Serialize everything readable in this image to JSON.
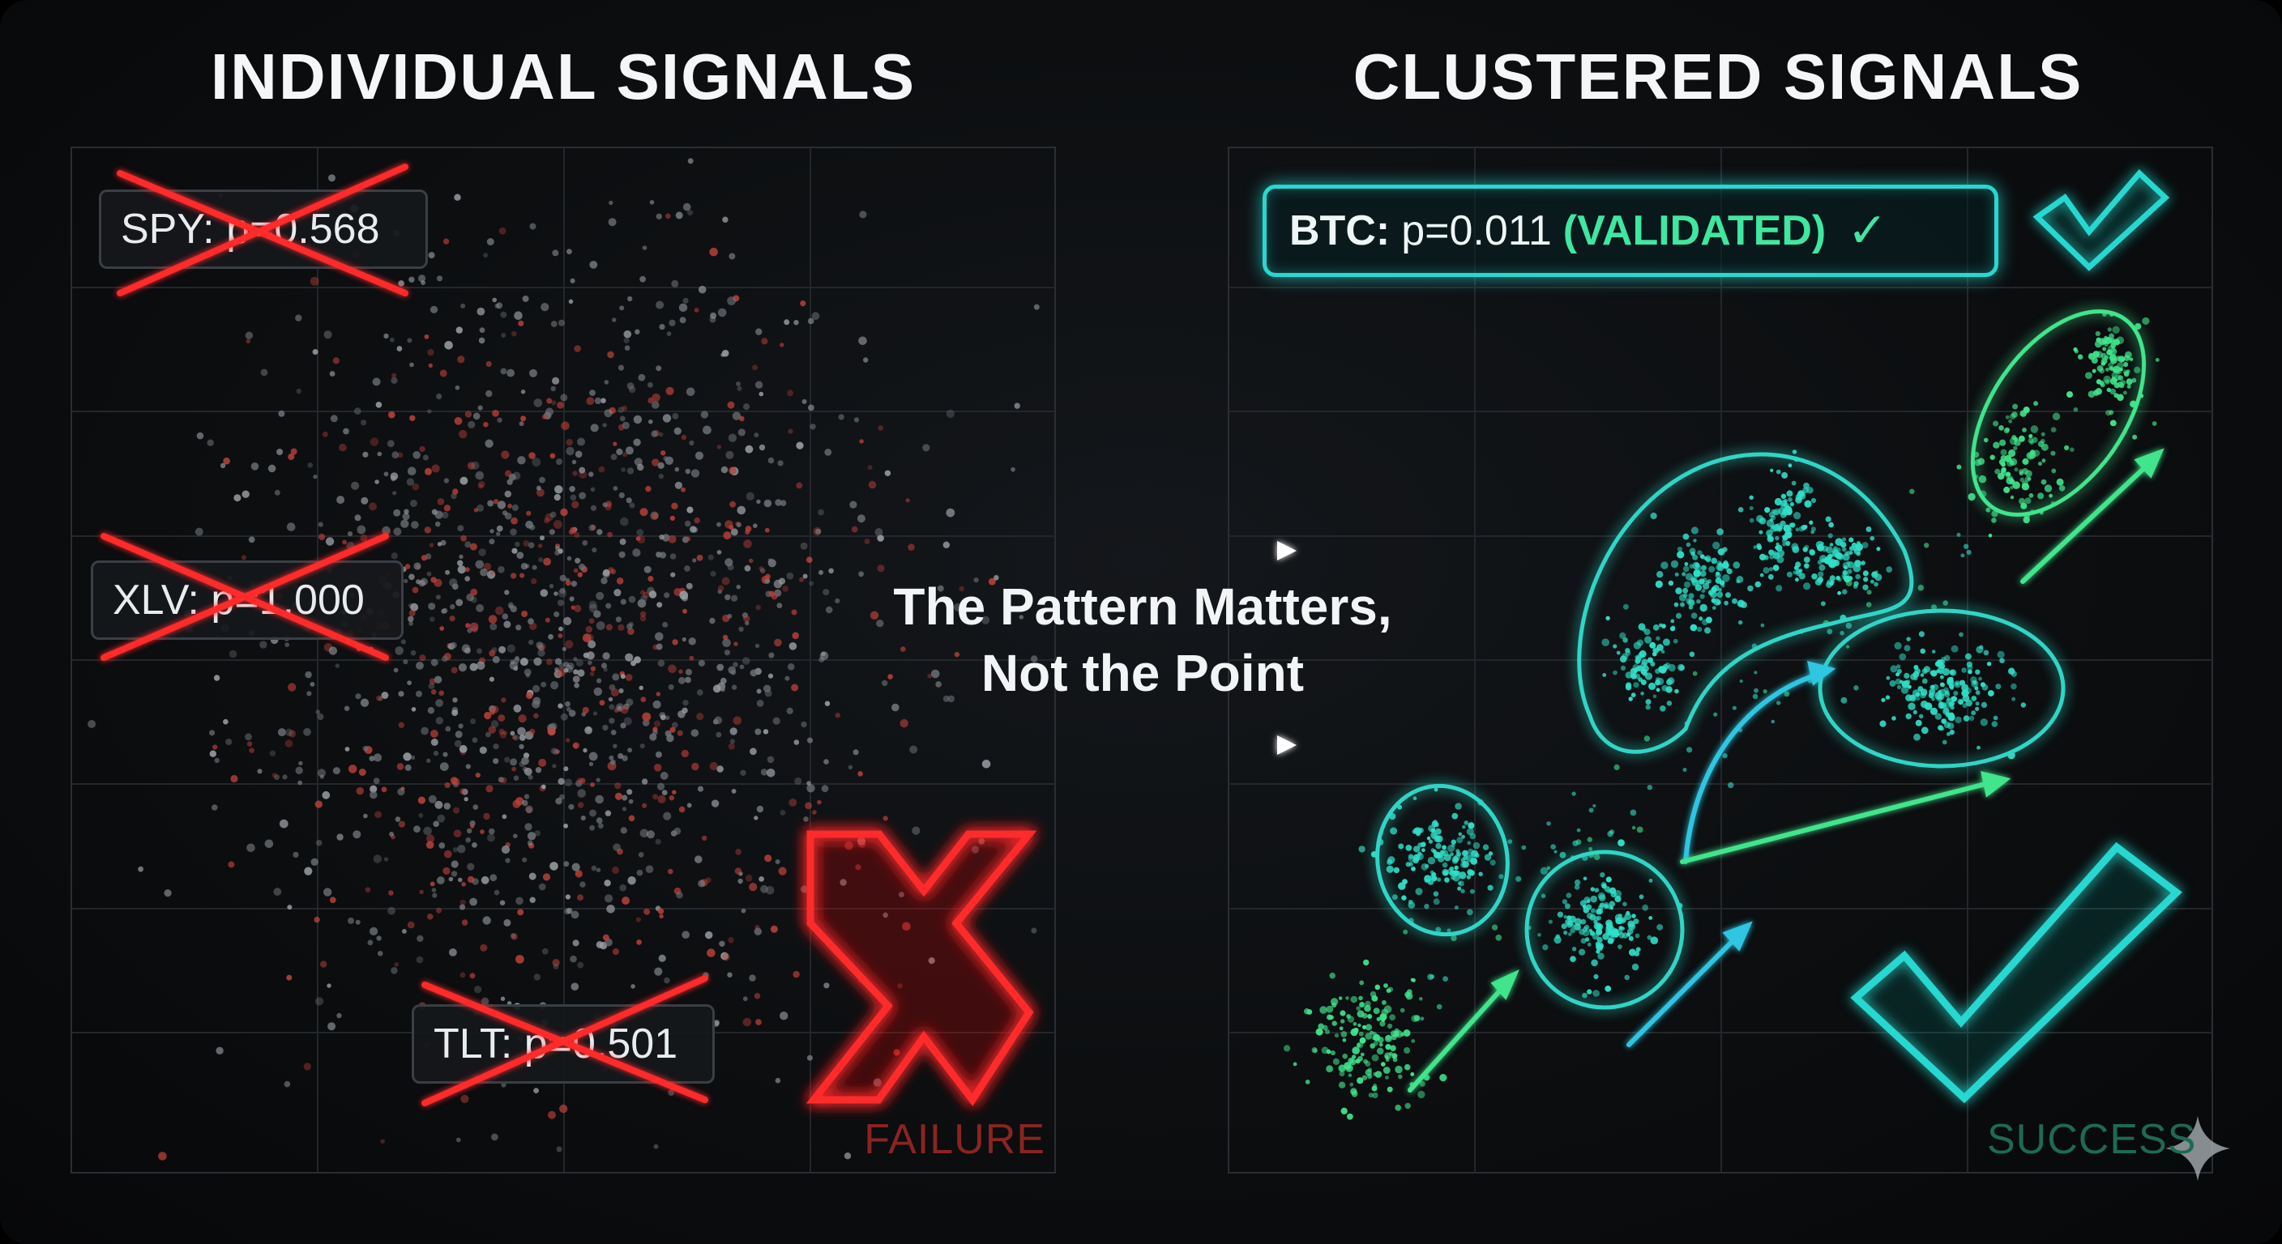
{
  "left_panel": {
    "title": "INDIVIDUAL SIGNALS",
    "labels": [
      {
        "asset": "SPY:",
        "text": "SPY: p=0.568"
      },
      {
        "asset": "XLV:",
        "text": "XLV: p=1.000"
      },
      {
        "asset": "TLT:",
        "text": "TLT: p=0.501"
      }
    ],
    "verdict": "FAILURE",
    "point_colors": [
      "#6f7479",
      "#9a9ea3",
      "#b8403b"
    ]
  },
  "right_panel": {
    "title": "CLUSTERED SIGNALS",
    "callout": {
      "asset": "BTC:",
      "value": "p=0.011",
      "status": "(VALIDATED)",
      "check": "✓"
    },
    "verdict": "SUCCESS",
    "cluster_colors": [
      "#2fe0c8",
      "#3fe58c"
    ]
  },
  "center": {
    "line1": "The Pattern Matters,",
    "line2": "Not the Point"
  },
  "colors": {
    "failure_red": "#ff2b2b",
    "success_cyan": "#27d8d0",
    "success_green": "#3fe58c",
    "background": "#0c0e10"
  },
  "icons": [
    "cross-icon",
    "big-x-icon",
    "check-icon",
    "big-check-icon",
    "arrow-right-icon",
    "sparkle-icon"
  ]
}
